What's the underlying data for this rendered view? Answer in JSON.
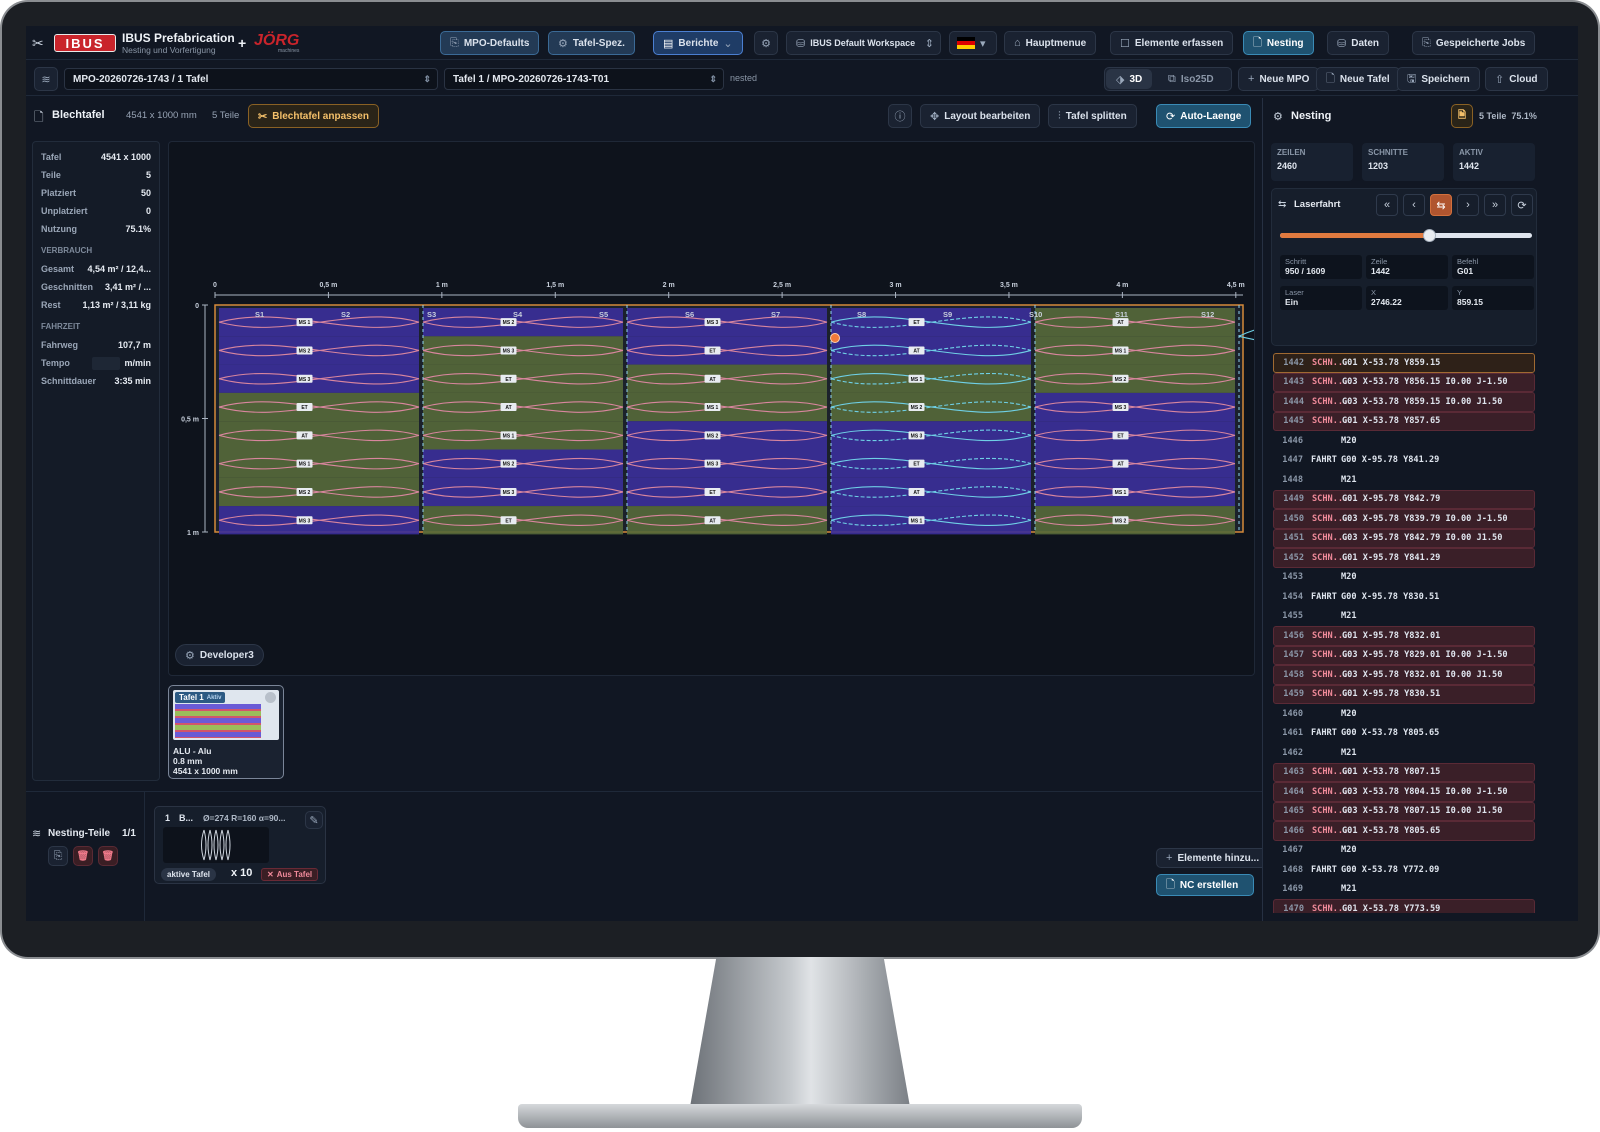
{
  "app": {
    "logo": "IBUS",
    "title": "IBUS Prefabrication",
    "subtitle": "Nesting und Vorfertigung",
    "partner_logo": "JÖRG",
    "partner_sub": "machines",
    "plus": "+"
  },
  "topbar": {
    "mpo_defaults": "MPO-Defaults",
    "tafel_spez": "Tafel-Spez.",
    "berichte": "Berichte",
    "workspace": "IBUS Default Workspace",
    "hauptmenue": "Hauptmenue",
    "elemente_erfassen": "Elemente erfassen",
    "nesting": "Nesting",
    "daten": "Daten",
    "gespeicherte_jobs": "Gespeicherte Jobs"
  },
  "secondbar": {
    "mpo_select": "MPO-20260726-1743 / 1 Tafel",
    "tafel_select": "Tafel 1 / MPO-20260726-1743-T01",
    "status": "nested",
    "view_3d": "3D",
    "view_iso": "Iso25D",
    "neue_mpo": "Neue MPO",
    "neue_tafel": "Neue Tafel",
    "speichern": "Speichern",
    "cloud": "Cloud"
  },
  "toolbar": {
    "title": "Blechtafel",
    "dims": "4541 x 1000 mm",
    "parts": "5 Teile",
    "anpassen": "Blechtafel anpassen",
    "layout": "Layout bearbeiten",
    "split": "Tafel splitten",
    "auto": "Auto-Laenge"
  },
  "stats": {
    "tafel_k": "Tafel",
    "tafel_v": "4541 x 1000",
    "teile_k": "Teile",
    "teile_v": "5",
    "platziert_k": "Platziert",
    "platziert_v": "50",
    "unplatziert_k": "Unplatziert",
    "unplatziert_v": "0",
    "nutzung_k": "Nutzung",
    "nutzung_v": "75.1%",
    "verbrauch": "VERBRAUCH",
    "gesamt_k": "Gesamt",
    "gesamt_v": "4,54 m² / 12,4...",
    "geschnitten_k": "Geschnitten",
    "geschnitten_v": "3,41 m² / ...",
    "rest_k": "Rest",
    "rest_v": "1,13 m² / 3,11 kg",
    "fahrzeit": "FAHRZEIT",
    "fahrweg_k": "Fahrweg",
    "fahrweg_v": "107,7 m",
    "tempo_k": "Tempo",
    "tempo_v": "m/min",
    "schnitt_k": "Schnittdauer",
    "schnitt_v": "3:35 min"
  },
  "canvas": {
    "x_ticks": [
      "0",
      "0,5 m",
      "1 m",
      "1,5 m",
      "2 m",
      "2,5 m",
      "3 m",
      "3,5 m",
      "4 m",
      "4,5 m"
    ],
    "y_ticks": [
      "0",
      "0,5 m",
      "1 m"
    ],
    "strips": [
      "S1",
      "S2",
      "S3",
      "S4",
      "S5",
      "S6",
      "S7",
      "S8",
      "S9",
      "S10",
      "S11",
      "S12"
    ],
    "developer": "Developer3"
  },
  "thumb": {
    "label": "Tafel 1",
    "badge": "Aktiv",
    "material": "ALU - Alu",
    "thickness": "0.8 mm",
    "dims": "4541 x 1000 mm"
  },
  "nesting_parts": {
    "title": "Nesting-Teile",
    "count": "1/1",
    "card_idx": "1",
    "card_name": "B...",
    "card_spec": "Ø=274 R=160 α=90...",
    "aktive": "aktive Tafel",
    "qty": "x 10",
    "aus": "Aus Tafel"
  },
  "bottom": {
    "elemente": "Elemente hinzu...",
    "nc": "NC erstellen"
  },
  "panel": {
    "title": "Nesting",
    "summary": "5 Teile  75.1%",
    "zeilen_t": "ZEILEN",
    "zeilen_n": "2460",
    "schnitte_t": "SCHNITTE",
    "schnitte_n": "1203",
    "aktiv_t": "AKTIV",
    "aktiv_n": "1442",
    "laserfahrt": "Laserfahrt",
    "progress": 0.59,
    "schritt_t": "Schritt",
    "schritt_n": "950 / 1609",
    "zeile_t": "Zeile",
    "zeile_n": "1442",
    "befehl_t": "Befehl",
    "befehl_n": "G01",
    "laser_t": "Laser",
    "laser_n": "Ein",
    "x_t": "X",
    "x_n": "2746.22",
    "y_t": "Y",
    "y_n": "859.15"
  },
  "gcode": [
    {
      "n": "1442",
      "t": "SCHN...",
      "c": "G01 X-53.78 Y859.15",
      "k": "cur"
    },
    {
      "n": "1443",
      "t": "SCHN...",
      "c": "G03 X-53.78 Y856.15 I0.00 J-1.50",
      "k": "cut"
    },
    {
      "n": "1444",
      "t": "SCHN...",
      "c": "G03 X-53.78 Y859.15 I0.00 J1.50",
      "k": "cut"
    },
    {
      "n": "1445",
      "t": "SCHN...",
      "c": "G01 X-53.78 Y857.65",
      "k": "cut"
    },
    {
      "n": "1446",
      "t": "",
      "c": "M20",
      "k": ""
    },
    {
      "n": "1447",
      "t": "FAHRT",
      "c": "G00 X-95.78 Y841.29",
      "k": ""
    },
    {
      "n": "1448",
      "t": "",
      "c": "M21",
      "k": ""
    },
    {
      "n": "1449",
      "t": "SCHN...",
      "c": "G01 X-95.78 Y842.79",
      "k": "cut"
    },
    {
      "n": "1450",
      "t": "SCHN...",
      "c": "G03 X-95.78 Y839.79 I0.00 J-1.50",
      "k": "cut"
    },
    {
      "n": "1451",
      "t": "SCHN...",
      "c": "G03 X-95.78 Y842.79 I0.00 J1.50",
      "k": "cut"
    },
    {
      "n": "1452",
      "t": "SCHN...",
      "c": "G01 X-95.78 Y841.29",
      "k": "cut"
    },
    {
      "n": "1453",
      "t": "",
      "c": "M20",
      "k": ""
    },
    {
      "n": "1454",
      "t": "FAHRT",
      "c": "G00 X-95.78 Y830.51",
      "k": ""
    },
    {
      "n": "1455",
      "t": "",
      "c": "M21",
      "k": ""
    },
    {
      "n": "1456",
      "t": "SCHN...",
      "c": "G01 X-95.78 Y832.01",
      "k": "cut"
    },
    {
      "n": "1457",
      "t": "SCHN...",
      "c": "G03 X-95.78 Y829.01 I0.00 J-1.50",
      "k": "cut"
    },
    {
      "n": "1458",
      "t": "SCHN...",
      "c": "G03 X-95.78 Y832.01 I0.00 J1.50",
      "k": "cut"
    },
    {
      "n": "1459",
      "t": "SCHN...",
      "c": "G01 X-95.78 Y830.51",
      "k": "cut"
    },
    {
      "n": "1460",
      "t": "",
      "c": "M20",
      "k": ""
    },
    {
      "n": "1461",
      "t": "FAHRT",
      "c": "G00 X-53.78 Y805.65",
      "k": ""
    },
    {
      "n": "1462",
      "t": "",
      "c": "M21",
      "k": ""
    },
    {
      "n": "1463",
      "t": "SCHN...",
      "c": "G01 X-53.78 Y807.15",
      "k": "cut"
    },
    {
      "n": "1464",
      "t": "SCHN...",
      "c": "G03 X-53.78 Y804.15 I0.00 J-1.50",
      "k": "cut"
    },
    {
      "n": "1465",
      "t": "SCHN...",
      "c": "G03 X-53.78 Y807.15 I0.00 J1.50",
      "k": "cut"
    },
    {
      "n": "1466",
      "t": "SCHN...",
      "c": "G01 X-53.78 Y805.65",
      "k": "cut"
    },
    {
      "n": "1467",
      "t": "",
      "c": "M20",
      "k": ""
    },
    {
      "n": "1468",
      "t": "FAHRT",
      "c": "G00 X-53.78 Y772.09",
      "k": ""
    },
    {
      "n": "1469",
      "t": "",
      "c": "M21",
      "k": ""
    },
    {
      "n": "1470",
      "t": "SCHN...",
      "c": "G01 X-53.78 Y773.59",
      "k": "cut"
    }
  ]
}
